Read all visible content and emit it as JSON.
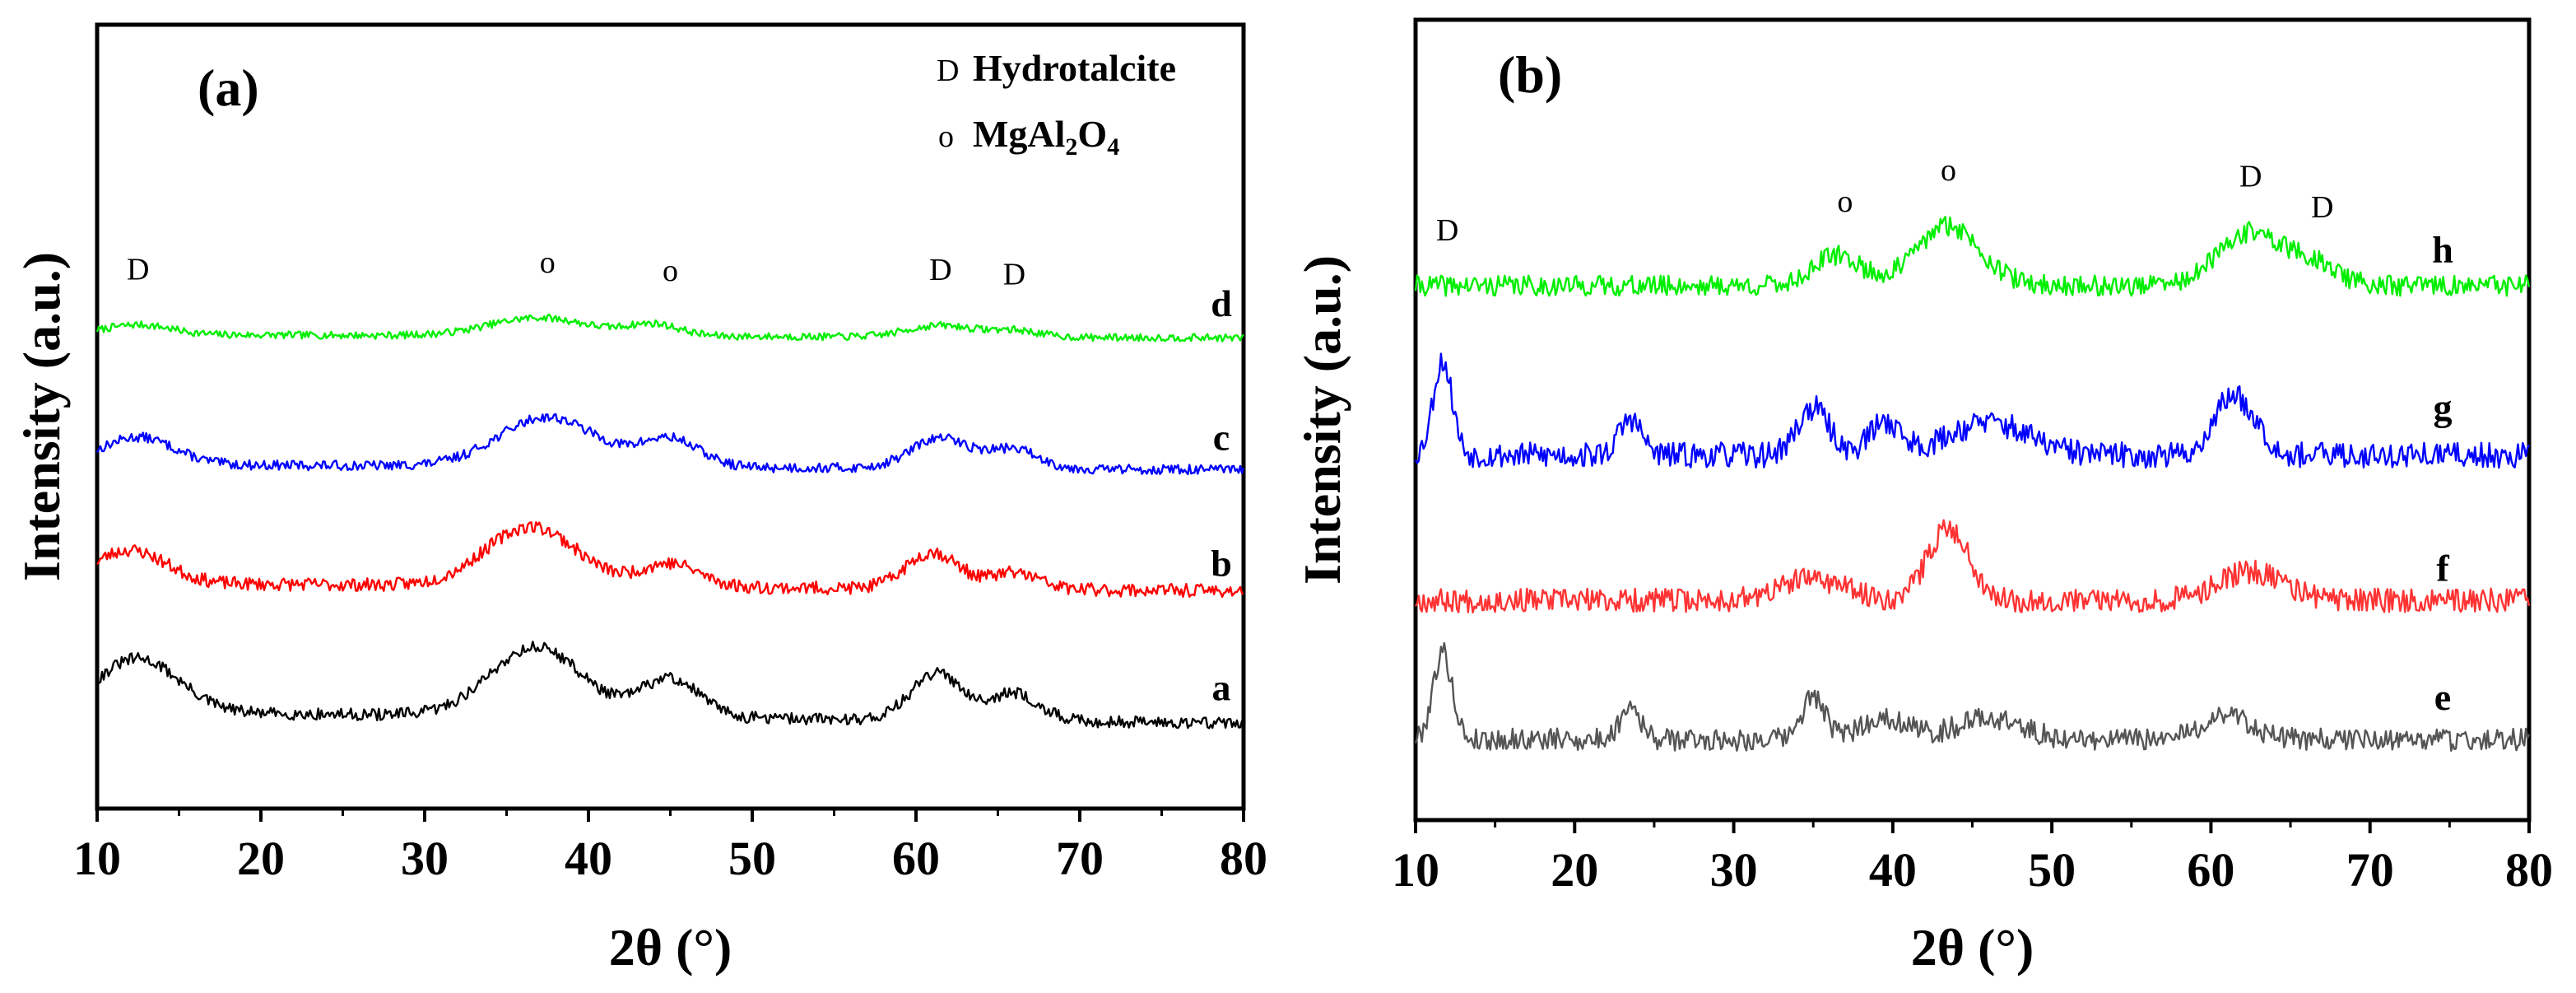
{
  "chart_data": [
    {
      "panel": "(a)",
      "type": "line",
      "xlabel": "2θ (°)",
      "ylabel": "Intensity (a.u.)",
      "xlim": [
        10,
        80
      ],
      "xticks": [
        "10",
        "20",
        "30",
        "40",
        "50",
        "60",
        "70",
        "80"
      ],
      "legend": [
        {
          "symbol": "D",
          "label": "Hydrotalcite"
        },
        {
          "symbol": "o",
          "label": "MgAl",
          "sub1": "2",
          "mid": "O",
          "sub2": "4"
        }
      ],
      "series": [
        {
          "name": "d",
          "color": "#00ee00",
          "offset": 0.76,
          "amp": 0.06,
          "noise": 0.05,
          "peaks": [
            [
              12.5,
              0.3,
              2.0
            ],
            [
              37,
              0.55,
              3.0
            ],
            [
              44,
              0.35,
              1.6
            ],
            [
              61.5,
              0.35,
              2.0
            ],
            [
              66,
              0.2,
              1.5
            ]
          ],
          "tilt": 0.1,
          "seed": 7
        },
        {
          "name": "c",
          "color": "#0000ff",
          "offset": 0.52,
          "amp": 0.1,
          "noise": 0.04,
          "peaks": [
            [
              12.5,
              0.5,
              2.2
            ],
            [
              37.5,
              0.9,
              3.0
            ],
            [
              45,
              0.5,
              1.8
            ],
            [
              61.5,
              0.55,
              1.8
            ],
            [
              66,
              0.35,
              1.5
            ]
          ],
          "tilt": 0.1,
          "seed": 13
        },
        {
          "name": "b",
          "color": "#ff0000",
          "offset": 0.3,
          "amp": 0.12,
          "noise": 0.045,
          "peaks": [
            [
              12,
              0.5,
              2.2
            ],
            [
              36.5,
              0.9,
              2.8
            ],
            [
              45,
              0.35,
              1.8
            ],
            [
              61,
              0.55,
              1.6
            ],
            [
              66,
              0.25,
              1.5
            ]
          ],
          "tilt": 0.12,
          "seed": 23
        },
        {
          "name": "a",
          "color": "#000000",
          "offset": 0.06,
          "amp": 0.14,
          "noise": 0.035,
          "peaks": [
            [
              12.5,
              0.7,
              2.5
            ],
            [
              36.8,
              0.9,
              2.8
            ],
            [
              45,
              0.5,
              1.8
            ],
            [
              61.3,
              0.6,
              1.6
            ],
            [
              66,
              0.35,
              1.5
            ]
          ],
          "tilt": 0.14,
          "seed": 31
        }
      ],
      "markers": [
        {
          "symbol": "D",
          "x": 12.5,
          "series": "d"
        },
        {
          "symbol": "o",
          "x": 37.5,
          "series": "d"
        },
        {
          "symbol": "o",
          "x": 45,
          "series": "d"
        },
        {
          "symbol": "D",
          "x": 61.5,
          "series": "d"
        },
        {
          "symbol": "D",
          "x": 66,
          "series": "d"
        }
      ]
    },
    {
      "panel": "(b)",
      "type": "line",
      "xlabel": "2θ (°)",
      "ylabel": "Intensity (a.u.)",
      "xlim": [
        10,
        80
      ],
      "xticks": [
        "10",
        "20",
        "30",
        "40",
        "50",
        "60",
        "70",
        "80"
      ],
      "series": [
        {
          "name": "h",
          "color": "#00ee00",
          "offset": 0.8,
          "amp": 0.11,
          "noise": 0.07,
          "peaks": [
            [
              36.5,
              0.45,
              1.5
            ],
            [
              43.5,
              0.9,
              2.0
            ],
            [
              62.5,
              0.8,
              2.0
            ],
            [
              66.5,
              0.3,
              1.5
            ]
          ],
          "tilt": 0.0,
          "seed": 41
        },
        {
          "name": "g",
          "color": "#0000ff",
          "offset": 0.52,
          "amp": 0.12,
          "noise": 0.08,
          "peaks": [
            [
              11.7,
              1.3,
              0.6
            ],
            [
              23.5,
              0.5,
              0.7
            ],
            [
              35,
              0.65,
              1.0
            ],
            [
              39.5,
              0.45,
              1.0
            ],
            [
              46,
              0.45,
              2.5
            ],
            [
              61,
              0.65,
              1.0
            ],
            [
              62.5,
              0.4,
              1.0
            ]
          ],
          "tilt": 0.0,
          "seed": 53
        },
        {
          "name": "f",
          "color": "#ff3333",
          "offset": 0.28,
          "amp": 0.12,
          "noise": 0.075,
          "peaks": [
            [
              35,
              0.3,
              2.0
            ],
            [
              43.5,
              1.0,
              1.3
            ],
            [
              62.5,
              0.4,
              2.0
            ]
          ],
          "tilt": 0.0,
          "seed": 67
        },
        {
          "name": "e",
          "color": "#555555",
          "offset": 0.05,
          "amp": 0.12,
          "noise": 0.07,
          "peaks": [
            [
              11.7,
              1.2,
              0.6
            ],
            [
              23.5,
              0.5,
              0.6
            ],
            [
              35,
              0.6,
              0.7
            ],
            [
              39.5,
              0.3,
              1.5
            ],
            [
              46,
              0.3,
              2.0
            ],
            [
              61,
              0.35,
              1.5
            ]
          ],
          "tilt": 0.0,
          "seed": 79
        }
      ],
      "markers": [
        {
          "symbol": "D",
          "x": 12,
          "series": "h"
        },
        {
          "symbol": "o",
          "x": 37,
          "series": "h"
        },
        {
          "symbol": "o",
          "x": 43.5,
          "series": "h"
        },
        {
          "symbol": "D",
          "x": 62.5,
          "series": "h"
        },
        {
          "symbol": "D",
          "x": 67,
          "series": "h"
        }
      ]
    }
  ]
}
